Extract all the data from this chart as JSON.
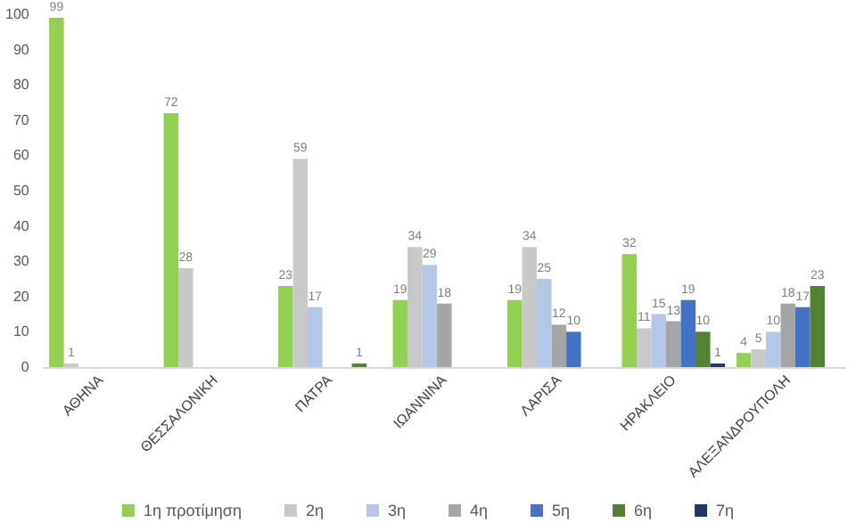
{
  "chart_data": {
    "type": "bar",
    "categories": [
      "ΑΘΗΝΑ",
      "ΘΕΣΣΑΛΟΝΙΚΗ",
      "ΠΑΤΡΑ",
      "ΙΩΑΝΝΙΝΑ",
      "ΛΑΡΙΣΑ",
      "ΗΡΑΚΛΕΙΟ",
      "ΑΛΕΞΑΝΔΡΟΥΠΟΛΗ"
    ],
    "series": [
      {
        "name": "1η προτίμηση",
        "color": "#92d050",
        "values": [
          99,
          72,
          23,
          19,
          19,
          32,
          4
        ]
      },
      {
        "name": "2η",
        "color": "#c9c9c9",
        "values": [
          1,
          28,
          59,
          34,
          34,
          11,
          5
        ]
      },
      {
        "name": "3η",
        "color": "#b4c7e7",
        "values": [
          null,
          null,
          17,
          29,
          25,
          15,
          10
        ]
      },
      {
        "name": "4η",
        "color": "#a5a5a5",
        "values": [
          null,
          null,
          null,
          18,
          12,
          13,
          18
        ]
      },
      {
        "name": "5η",
        "color": "#4472c4",
        "values": [
          null,
          null,
          null,
          null,
          10,
          19,
          17
        ]
      },
      {
        "name": "6η",
        "color": "#548235",
        "values": [
          null,
          null,
          1,
          null,
          null,
          10,
          23
        ]
      },
      {
        "name": "7η",
        "color": "#203864",
        "values": [
          null,
          null,
          null,
          null,
          null,
          1,
          null
        ]
      }
    ],
    "ylim": [
      0,
      100
    ],
    "yticks": [
      0,
      10,
      20,
      30,
      40,
      50,
      60,
      70,
      80,
      90,
      100
    ],
    "data_labels": true,
    "grid": false,
    "legend": "bottom"
  }
}
